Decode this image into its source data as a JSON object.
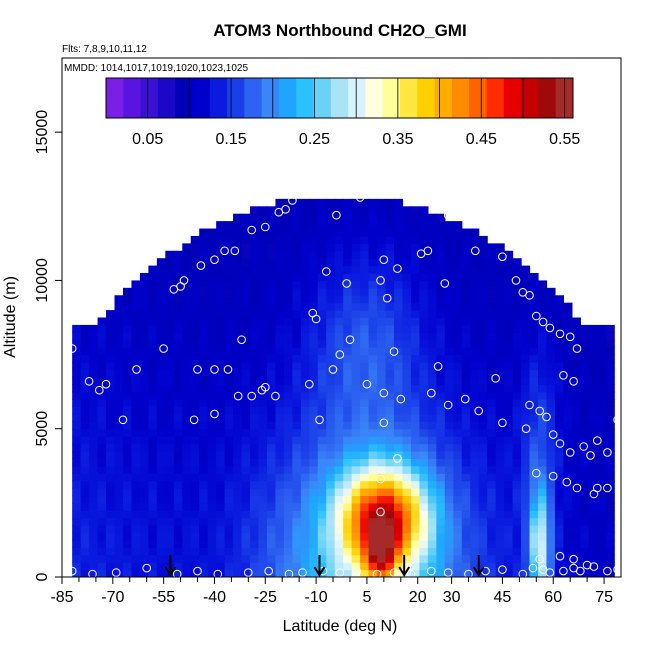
{
  "chart_data": {
    "type": "heatmap",
    "title": "ATOM3 Northbound CH2O_GMI",
    "subtitle_flights": "Flts: 7,8,9,10,11,12",
    "subtitle_dates": "MMDD: 1014,1017,1019,1020,1023,1025",
    "xlabel": "Latitude (deg N)",
    "ylabel": "Altitude (m)",
    "xlim": [
      -85,
      80
    ],
    "ylim": [
      0,
      17500
    ],
    "x_ticks": [
      -85,
      -70,
      -55,
      -40,
      -25,
      -10,
      5,
      20,
      30,
      45,
      60,
      75
    ],
    "x_minor_ticks": [
      -80,
      -75,
      -65,
      -60,
      -50,
      -45,
      -35,
      -30,
      -20,
      -15,
      -5,
      0,
      10,
      15,
      25,
      35,
      40,
      50,
      55,
      65,
      70
    ],
    "y_ticks": [
      0,
      5000,
      10000,
      15000
    ],
    "colorbar": {
      "min": 0.0,
      "max": 0.56,
      "ticks": [
        "0.05",
        "0.15",
        "0.25",
        "0.35",
        "0.45",
        "0.55"
      ],
      "tick_values": [
        0.05,
        0.15,
        0.25,
        0.35,
        0.45,
        0.55
      ],
      "colors": [
        "#7a1fe6",
        "#5a14e0",
        "#3a0fd6",
        "#1a07c8",
        "#0000b8",
        "#0000cc",
        "#0a1adf",
        "#1a3fe8",
        "#2d63f0",
        "#3a86f8",
        "#1fa4ff",
        "#2cc0ff",
        "#6ad2f5",
        "#a8e4f6",
        "#d8f2ff",
        "#ffffe0",
        "#ffff9a",
        "#ffe640",
        "#ffcf00",
        "#ffac00",
        "#ff8a00",
        "#ff6200",
        "#ff2c00",
        "#e60000",
        "#c40000",
        "#9e0a0a",
        "#a62a2a"
      ]
    },
    "flight_markers_lat": [
      -53,
      -9,
      16,
      38
    ],
    "points": [
      [
        -78,
        10200
      ],
      [
        -74,
        10500
      ],
      [
        -71,
        10500
      ],
      [
        -66,
        11800
      ],
      [
        -63,
        10700
      ],
      [
        -57,
        11800
      ],
      [
        -52,
        9700
      ],
      [
        -50,
        9800
      ],
      [
        -49,
        10000
      ],
      [
        -44,
        10500
      ],
      [
        -40,
        10700
      ],
      [
        -37,
        11000
      ],
      [
        -34,
        11000
      ],
      [
        -29,
        11700
      ],
      [
        -25,
        11800
      ],
      [
        -21,
        12300
      ],
      [
        -19,
        12400
      ],
      [
        -17,
        12700
      ],
      [
        -15,
        13200
      ],
      [
        -14,
        13300
      ],
      [
        -4,
        12200
      ],
      [
        3,
        12800
      ],
      [
        -11,
        8900
      ],
      [
        -10,
        8700
      ],
      [
        -7,
        10300
      ],
      [
        -1,
        9900
      ],
      [
        9,
        10000
      ],
      [
        10,
        10700
      ],
      [
        11,
        9400
      ],
      [
        14,
        10400
      ],
      [
        21,
        10900
      ],
      [
        23,
        11000
      ],
      [
        29,
        12200
      ],
      [
        28,
        9900
      ],
      [
        37,
        11000
      ],
      [
        44,
        12100
      ],
      [
        45,
        10800
      ],
      [
        49,
        10000
      ],
      [
        51,
        9600
      ],
      [
        53,
        9500
      ],
      [
        55,
        8800
      ],
      [
        57,
        8600
      ],
      [
        59,
        8400
      ],
      [
        62,
        8200
      ],
      [
        65,
        8100
      ],
      [
        67,
        7700
      ],
      [
        63,
        6800
      ],
      [
        66,
        6600
      ],
      [
        -82,
        7700
      ],
      [
        -77,
        6600
      ],
      [
        -74,
        6300
      ],
      [
        -72,
        6500
      ],
      [
        -67,
        5300
      ],
      [
        -63,
        7000
      ],
      [
        -55,
        7700
      ],
      [
        -45,
        7000
      ],
      [
        -40,
        7000
      ],
      [
        -36,
        7000
      ],
      [
        -33,
        6100
      ],
      [
        -29,
        6100
      ],
      [
        -26,
        6300
      ],
      [
        -22,
        6100
      ],
      [
        -32,
        8000
      ],
      [
        -40,
        5500
      ],
      [
        -46,
        5300
      ],
      [
        -25,
        6400
      ],
      [
        -12,
        6500
      ],
      [
        -9,
        5300
      ],
      [
        -5,
        7000
      ],
      [
        -3,
        7500
      ],
      [
        0,
        8000
      ],
      [
        5,
        6500
      ],
      [
        10,
        6200
      ],
      [
        13,
        7600
      ],
      [
        10,
        5200
      ],
      [
        15,
        6000
      ],
      [
        24,
        6200
      ],
      [
        26,
        7100
      ],
      [
        29,
        5800
      ],
      [
        34,
        6000
      ],
      [
        38,
        5600
      ],
      [
        43,
        6700
      ],
      [
        45,
        5200
      ],
      [
        52,
        5000
      ],
      [
        53,
        5800
      ],
      [
        56,
        5600
      ],
      [
        58,
        5400
      ],
      [
        60,
        4800
      ],
      [
        62,
        4500
      ],
      [
        65,
        4200
      ],
      [
        69,
        4400
      ],
      [
        71,
        4100
      ],
      [
        73,
        4600
      ],
      [
        76,
        4200
      ],
      [
        79,
        5300
      ],
      [
        14,
        4000
      ],
      [
        9,
        3300
      ],
      [
        9,
        2200
      ],
      [
        55,
        3500
      ],
      [
        60,
        3400
      ],
      [
        64,
        3200
      ],
      [
        67,
        3000
      ],
      [
        72,
        2800
      ],
      [
        73,
        3000
      ],
      [
        76,
        3000
      ],
      [
        -82,
        200
      ],
      [
        -76,
        100
      ],
      [
        -69,
        150
      ],
      [
        -60,
        300
      ],
      [
        -51,
        100
      ],
      [
        -45,
        200
      ],
      [
        -39,
        100
      ],
      [
        -30,
        150
      ],
      [
        -24,
        200
      ],
      [
        -18,
        100
      ],
      [
        -14,
        150
      ],
      [
        -8,
        200
      ],
      [
        -3,
        150
      ],
      [
        2,
        200
      ],
      [
        8,
        100
      ],
      [
        13,
        150
      ],
      [
        18,
        100
      ],
      [
        24,
        200
      ],
      [
        29,
        150
      ],
      [
        35,
        100
      ],
      [
        40,
        200
      ],
      [
        45,
        250
      ],
      [
        51,
        100
      ],
      [
        54,
        300
      ],
      [
        57,
        250
      ],
      [
        59,
        150
      ],
      [
        63,
        200
      ],
      [
        66,
        300
      ],
      [
        68,
        200
      ],
      [
        72,
        350
      ],
      [
        76,
        200
      ],
      [
        79,
        250
      ],
      [
        56,
        600
      ],
      [
        62,
        700
      ],
      [
        66,
        600
      ],
      [
        70,
        400
      ]
    ]
  }
}
